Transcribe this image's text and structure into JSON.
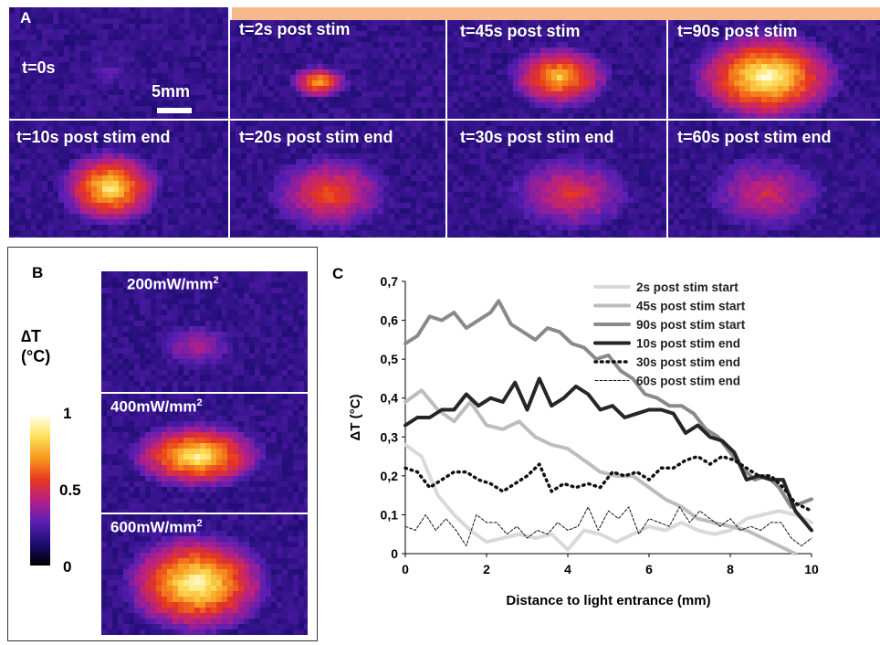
{
  "panel_a": {
    "letter": "A",
    "scale_label": "5mm",
    "tiles": [
      {
        "label": "t=0s"
      },
      {
        "label": "t=2s post stim"
      },
      {
        "label": "t=45s post stim"
      },
      {
        "label": "t=90s post stim"
      },
      {
        "label": "t=10s post stim end"
      },
      {
        "label": "t=20s post stim end"
      },
      {
        "label": "t=30s post stim end"
      },
      {
        "label": "t=60s post stim end"
      }
    ]
  },
  "panel_b": {
    "letter": "B",
    "colorbar_title_line1": "∆T",
    "colorbar_title_line2": "(°C)",
    "colorbar_ticks": [
      "1",
      "0.5",
      "0"
    ],
    "tiles": [
      {
        "power": "200mW/mm",
        "exp": "2"
      },
      {
        "power": "400mW/mm",
        "exp": "2"
      },
      {
        "power": "600mW/mm",
        "exp": "2"
      }
    ]
  },
  "colors": {
    "colormap": [
      "#000000",
      "#1a0b6e",
      "#5a1fb3",
      "#b21f8a",
      "#e8361f",
      "#f7941d",
      "#fde05a",
      "#ffffe8"
    ],
    "stim_bar": "#f6b98e"
  },
  "chart_data": {
    "letter": "C",
    "type": "line",
    "title": "",
    "xlabel": "Distance to light entrance (mm)",
    "ylabel": "ΔT (°C)",
    "xlim": [
      0,
      10
    ],
    "ylim": [
      0,
      0.7
    ],
    "xticks": [
      "0",
      "2",
      "4",
      "6",
      "8",
      "10"
    ],
    "yticks": [
      "0",
      "0,1",
      "0,2",
      "0,3",
      "0,4",
      "0,5",
      "0,6",
      "0,7"
    ],
    "grid": false,
    "legend_position": "top-right",
    "series": [
      {
        "name": "2s post stim start",
        "color": "#d9d9d9",
        "width": 4,
        "dash": "",
        "x": [
          0,
          0.4,
          0.8,
          1.2,
          1.6,
          2.0,
          2.4,
          2.8,
          3.2,
          3.6,
          4.0,
          4.4,
          4.8,
          5.2,
          5.6,
          6.0,
          6.4,
          6.8,
          7.2,
          7.6,
          8.0,
          8.4,
          8.8,
          9.2,
          9.6,
          10.0
        ],
        "y": [
          0.28,
          0.25,
          0.15,
          0.1,
          0.06,
          0.03,
          0.04,
          0.05,
          0.04,
          0.05,
          0.01,
          0.06,
          0.05,
          0.03,
          0.05,
          0.07,
          0.06,
          0.08,
          0.06,
          0.05,
          0.06,
          0.09,
          0.1,
          0.11,
          0.1,
          0.08
        ]
      },
      {
        "name": "45s post stim start",
        "color": "#bdbdbd",
        "width": 4,
        "dash": "",
        "x": [
          0,
          0.4,
          0.8,
          1.2,
          1.6,
          2.0,
          2.4,
          2.8,
          3.2,
          3.6,
          4.0,
          4.4,
          4.8,
          5.2,
          5.6,
          6.0,
          6.4,
          6.8,
          7.2,
          7.6,
          8.0,
          8.4,
          8.8,
          9.2,
          9.6
        ],
        "y": [
          0.39,
          0.42,
          0.37,
          0.34,
          0.39,
          0.33,
          0.32,
          0.34,
          0.3,
          0.28,
          0.27,
          0.24,
          0.21,
          0.2,
          0.2,
          0.17,
          0.14,
          0.12,
          0.09,
          0.08,
          0.07,
          0.06,
          0.04,
          0.02,
          0.0
        ]
      },
      {
        "name": "90s post stim start",
        "color": "#8a8a8a",
        "width": 4,
        "dash": "",
        "x": [
          0,
          0.3,
          0.6,
          0.9,
          1.2,
          1.5,
          1.8,
          2.1,
          2.3,
          2.6,
          2.9,
          3.2,
          3.5,
          3.8,
          4.1,
          4.4,
          4.7,
          5.0,
          5.3,
          5.6,
          5.9,
          6.2,
          6.5,
          6.8,
          7.1,
          7.4,
          7.7,
          8.0,
          8.3,
          8.6,
          8.9,
          9.2,
          9.5,
          10.0
        ],
        "y": [
          0.54,
          0.56,
          0.61,
          0.6,
          0.62,
          0.58,
          0.6,
          0.62,
          0.65,
          0.59,
          0.57,
          0.55,
          0.58,
          0.57,
          0.54,
          0.53,
          0.5,
          0.51,
          0.47,
          0.45,
          0.41,
          0.4,
          0.38,
          0.38,
          0.36,
          0.32,
          0.3,
          0.26,
          0.22,
          0.19,
          0.2,
          0.17,
          0.12,
          0.14
        ]
      },
      {
        "name": "10s post stim end",
        "color": "#262626",
        "width": 4,
        "dash": "",
        "x": [
          0,
          0.3,
          0.6,
          0.9,
          1.2,
          1.5,
          1.8,
          2.1,
          2.4,
          2.7,
          3.0,
          3.3,
          3.6,
          3.9,
          4.2,
          4.5,
          4.8,
          5.1,
          5.4,
          5.7,
          6.0,
          6.3,
          6.6,
          6.9,
          7.2,
          7.5,
          7.8,
          8.1,
          8.4,
          8.7,
          9.0,
          9.3,
          9.6,
          10.0
        ],
        "y": [
          0.33,
          0.35,
          0.35,
          0.37,
          0.37,
          0.41,
          0.38,
          0.4,
          0.39,
          0.44,
          0.37,
          0.45,
          0.38,
          0.4,
          0.43,
          0.41,
          0.37,
          0.38,
          0.35,
          0.36,
          0.37,
          0.37,
          0.36,
          0.31,
          0.33,
          0.3,
          0.29,
          0.26,
          0.19,
          0.2,
          0.19,
          0.19,
          0.11,
          0.06
        ]
      },
      {
        "name": "30s post stim end",
        "color": "#111111",
        "width": 3.5,
        "dash": "1.5 5",
        "x": [
          0,
          0.3,
          0.6,
          0.9,
          1.2,
          1.5,
          1.8,
          2.1,
          2.4,
          2.7,
          3.0,
          3.3,
          3.6,
          3.9,
          4.2,
          4.5,
          4.8,
          5.1,
          5.4,
          5.7,
          6.0,
          6.3,
          6.6,
          6.9,
          7.2,
          7.5,
          7.8,
          8.1,
          8.4,
          8.7,
          9.0,
          9.3,
          9.6,
          10.0
        ],
        "y": [
          0.22,
          0.21,
          0.17,
          0.19,
          0.21,
          0.21,
          0.19,
          0.18,
          0.16,
          0.18,
          0.2,
          0.23,
          0.16,
          0.18,
          0.17,
          0.18,
          0.17,
          0.21,
          0.2,
          0.21,
          0.19,
          0.22,
          0.22,
          0.24,
          0.25,
          0.23,
          0.25,
          0.24,
          0.22,
          0.2,
          0.2,
          0.17,
          0.13,
          0.11
        ]
      },
      {
        "name": "60s post stim end",
        "color": "#111111",
        "width": 1,
        "dash": "3 2",
        "x": [
          0,
          0.25,
          0.5,
          0.75,
          1.0,
          1.25,
          1.5,
          1.75,
          2.0,
          2.25,
          2.5,
          2.75,
          3.0,
          3.25,
          3.5,
          3.75,
          4.0,
          4.25,
          4.5,
          4.75,
          5.0,
          5.25,
          5.5,
          5.75,
          6.0,
          6.25,
          6.5,
          6.75,
          7.0,
          7.25,
          7.5,
          7.75,
          8.0,
          8.25,
          8.5,
          8.75,
          9.0,
          9.25,
          9.5,
          9.75,
          10.0
        ],
        "y": [
          0.07,
          0.06,
          0.1,
          0.06,
          0.09,
          0.06,
          0.02,
          0.1,
          0.08,
          0.08,
          0.05,
          0.07,
          0.04,
          0.06,
          0.05,
          0.08,
          0.06,
          0.07,
          0.12,
          0.06,
          0.11,
          0.09,
          0.12,
          0.05,
          0.09,
          0.08,
          0.07,
          0.12,
          0.08,
          0.11,
          0.09,
          0.07,
          0.09,
          0.06,
          0.07,
          0.06,
          0.08,
          0.08,
          0.04,
          0.02,
          0.04
        ]
      }
    ]
  }
}
